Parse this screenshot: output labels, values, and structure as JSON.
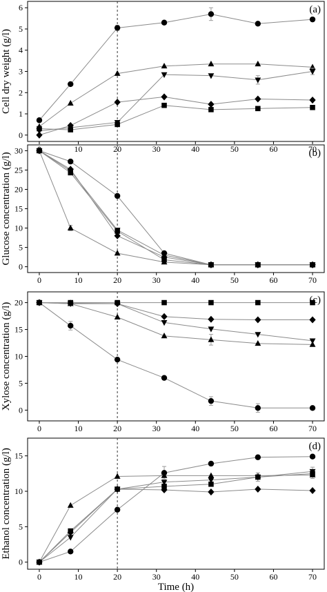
{
  "chart_data": [
    {
      "type": "line",
      "panel_label": "(a)",
      "ylabel": "Cell dry weight (g/l)",
      "xlabel": "",
      "xlim": [
        -3,
        73
      ],
      "ylim": [
        -0.3,
        6.3
      ],
      "xticks": [
        0,
        10,
        20,
        30,
        40,
        50,
        60,
        70
      ],
      "yticks": [
        0,
        1,
        2,
        3,
        4,
        5,
        6
      ],
      "vline_x": 20,
      "x": [
        0,
        8,
        20,
        32,
        44,
        56,
        70
      ],
      "series": [
        {
          "marker": "circle",
          "values": [
            0.7,
            2.4,
            5.05,
            5.3,
            5.7,
            5.25,
            5.45
          ],
          "errors": [
            0,
            0,
            0.12,
            0,
            0.3,
            0,
            0
          ]
        },
        {
          "marker": "triangle-up",
          "values": [
            0.4,
            1.5,
            2.9,
            3.25,
            3.35,
            3.35,
            3.2
          ],
          "errors": [
            0,
            0,
            0,
            0,
            0,
            0,
            0
          ]
        },
        {
          "marker": "triangle-down",
          "values": [
            0.2,
            0.35,
            0.6,
            2.85,
            2.8,
            2.6,
            3.0
          ],
          "errors": [
            0,
            0,
            0,
            0,
            0,
            0.2,
            0.15
          ]
        },
        {
          "marker": "diamond",
          "values": [
            0.0,
            0.45,
            1.55,
            1.8,
            1.45,
            1.7,
            1.65
          ],
          "errors": [
            0,
            0,
            0,
            0,
            0,
            0,
            0
          ]
        },
        {
          "marker": "square",
          "values": [
            0.3,
            0.25,
            0.5,
            1.4,
            1.2,
            1.25,
            1.3
          ],
          "errors": [
            0,
            0,
            0,
            0,
            0,
            0,
            0
          ]
        }
      ]
    },
    {
      "type": "line",
      "panel_label": "(b)",
      "ylabel": "Glucose concentration (g/l)",
      "xlabel": "",
      "xlim": [
        -3,
        73
      ],
      "ylim": [
        -1.5,
        31.5
      ],
      "xticks": [
        0,
        10,
        20,
        30,
        40,
        50,
        60,
        70
      ],
      "yticks": [
        0,
        5,
        10,
        15,
        20,
        25,
        30
      ],
      "vline_x": 20,
      "x": [
        0,
        8,
        20,
        32,
        44,
        56,
        70
      ],
      "series": [
        {
          "marker": "circle",
          "values": [
            30,
            27.2,
            18.3,
            3.5,
            0.5,
            0.5,
            0.5
          ],
          "errors": [
            0,
            0,
            0,
            0,
            0,
            0,
            0
          ]
        },
        {
          "marker": "triangle-up",
          "values": [
            30,
            10,
            3.5,
            1.2,
            0.5,
            0.5,
            0.5
          ],
          "errors": [
            0,
            0.7,
            0,
            0,
            0,
            0,
            0
          ]
        },
        {
          "marker": "triangle-down",
          "values": [
            30,
            24.8,
            9.5,
            3.0,
            0.5,
            0.5,
            0.5
          ],
          "errors": [
            0,
            0,
            0,
            0,
            0,
            0,
            0
          ]
        },
        {
          "marker": "diamond",
          "values": [
            30,
            25.2,
            8.0,
            2.5,
            0.5,
            0.5,
            0.5
          ],
          "errors": [
            0,
            0,
            0,
            0,
            0,
            0,
            0
          ]
        },
        {
          "marker": "square",
          "values": [
            30,
            24.3,
            9.2,
            1.8,
            0.5,
            0.5,
            0.5
          ],
          "errors": [
            0,
            0,
            0,
            0,
            0,
            0,
            0
          ]
        }
      ]
    },
    {
      "type": "line",
      "panel_label": "(c)",
      "ylabel": "Xylose concentration (g/l)",
      "xlabel": "",
      "xlim": [
        -3,
        73
      ],
      "ylim": [
        -2,
        22
      ],
      "xticks": [
        0,
        10,
        20,
        30,
        40,
        50,
        60,
        70
      ],
      "yticks": [
        0,
        5,
        10,
        15,
        20
      ],
      "vline_x": 20,
      "x": [
        0,
        8,
        20,
        32,
        44,
        56,
        70
      ],
      "series": [
        {
          "marker": "circle",
          "values": [
            20,
            15.7,
            9.4,
            6.0,
            1.7,
            0.4,
            0.4
          ],
          "errors": [
            0,
            0.8,
            0,
            0,
            0.8,
            0.8,
            0
          ]
        },
        {
          "marker": "triangle-up",
          "values": [
            20,
            19.8,
            17.3,
            13.8,
            13.1,
            12.4,
            12.2
          ],
          "errors": [
            0,
            0,
            0,
            0,
            1.0,
            0,
            0
          ]
        },
        {
          "marker": "triangle-down",
          "values": [
            20,
            19.8,
            19.8,
            16.3,
            15.1,
            14.1,
            12.9
          ],
          "errors": [
            0,
            0,
            0,
            0,
            0,
            0,
            0
          ]
        },
        {
          "marker": "diamond",
          "values": [
            20,
            19.9,
            19.8,
            17.4,
            16.9,
            16.8,
            16.8
          ],
          "errors": [
            0,
            0,
            0,
            0,
            0,
            0,
            0
          ]
        },
        {
          "marker": "square",
          "values": [
            20,
            20,
            20,
            20,
            20,
            20,
            20
          ],
          "errors": [
            0,
            0,
            0,
            0,
            0,
            0,
            0
          ]
        }
      ]
    },
    {
      "type": "line",
      "panel_label": "(d)",
      "ylabel": "Ethanol concentration (g/l)",
      "xlabel": "Time (h)",
      "xlim": [
        -3,
        73
      ],
      "ylim": [
        -1,
        17.5
      ],
      "xticks": [
        0,
        10,
        20,
        30,
        40,
        50,
        60,
        70
      ],
      "yticks": [
        0,
        5,
        10,
        15
      ],
      "vline_x": 20,
      "x": [
        0,
        8,
        20,
        32,
        44,
        56,
        70
      ],
      "series": [
        {
          "marker": "circle",
          "values": [
            0,
            1.5,
            7.4,
            12.6,
            13.9,
            14.8,
            14.9
          ],
          "errors": [
            0,
            0,
            0,
            0.9,
            0,
            0,
            0
          ]
        },
        {
          "marker": "triangle-up",
          "values": [
            0,
            8.0,
            12.1,
            12.2,
            12.2,
            12.2,
            12.3
          ],
          "errors": [
            0,
            0,
            0,
            0,
            0,
            0,
            0.5
          ]
        },
        {
          "marker": "triangle-down",
          "values": [
            0,
            3.5,
            10.3,
            11.3,
            11.6,
            12.0,
            12.8
          ],
          "errors": [
            0,
            0,
            0,
            0,
            0,
            0.6,
            0.6
          ]
        },
        {
          "marker": "diamond",
          "values": [
            0,
            4.2,
            10.3,
            10.2,
            9.9,
            10.3,
            10.1
          ],
          "errors": [
            0,
            0,
            0,
            0,
            0,
            0,
            0
          ]
        },
        {
          "marker": "square",
          "values": [
            0,
            4.4,
            10.3,
            10.7,
            11.0,
            12.0,
            12.5
          ],
          "errors": [
            0,
            0,
            0,
            0,
            0,
            0,
            0
          ]
        }
      ]
    }
  ]
}
